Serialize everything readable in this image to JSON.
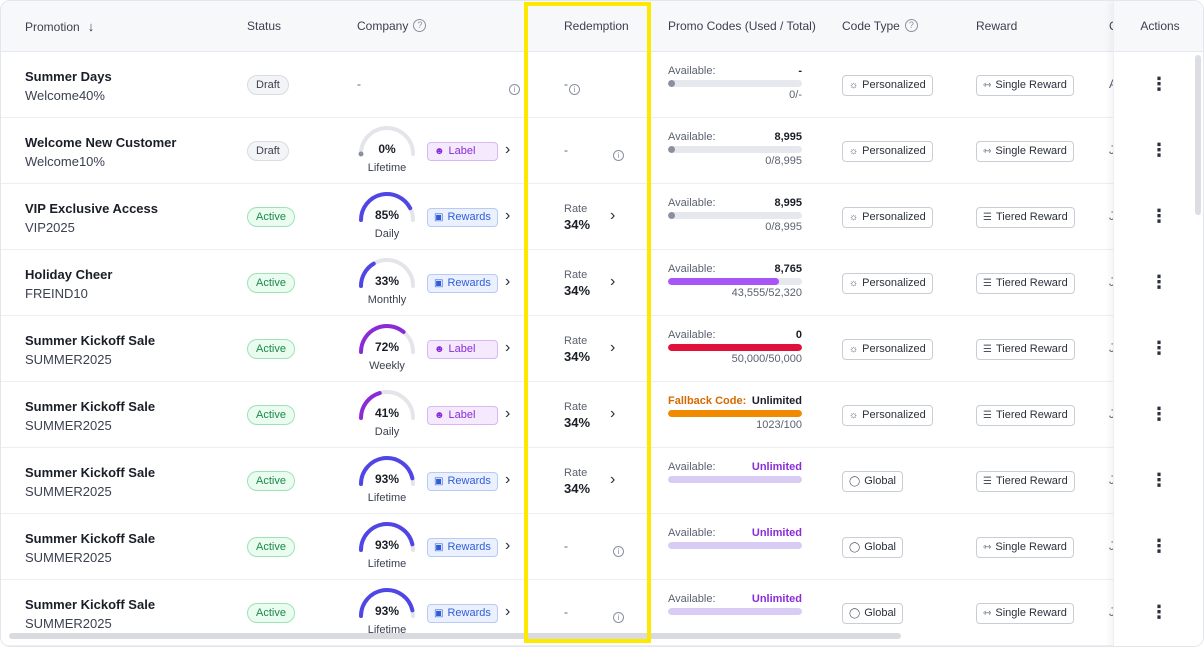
{
  "header": {
    "promotion": "Promotion",
    "status": "Status",
    "company": "Company",
    "redemption": "Redemption",
    "promo_codes": "Promo Codes (Used / Total)",
    "code_type": "Code Type",
    "reward": "Reward",
    "cut_col": "C",
    "actions": "Actions"
  },
  "colors": {
    "highlight": "#fde800",
    "active_green": "#1a8a48",
    "gauge_blue": "#4f46e5",
    "gauge_purple": "#8a2bd8",
    "bar_purple": "#a855f7",
    "bar_red": "#e0103a",
    "bar_orange": "#f08a00",
    "bar_lavender": "#d8ccf5"
  },
  "rows": [
    {
      "name": "Summer Days",
      "code": "Welcome40%",
      "status": "Draft",
      "company": "-",
      "redemption": "-",
      "promo_label": "Available:",
      "promo_value": "-",
      "promo_ratio": "0/-",
      "promo_fill": 0,
      "code_type": "Personalized",
      "code_icon": "personalized-icon",
      "reward": "Single Reward",
      "reward_icon": "single-reward-icon",
      "cut": "A"
    },
    {
      "name": "Welcome New Customer",
      "code": "Welcome10%",
      "status": "Draft",
      "gauge_pct": "0%",
      "gauge_val": 0,
      "gauge_period": "Lifetime",
      "tag": "Label",
      "tag_kind": "label",
      "redemption": "-",
      "promo_label": "Available:",
      "promo_value": "8,995",
      "promo_ratio": "0/8,995",
      "promo_fill": 0,
      "code_type": "Personalized",
      "code_icon": "personalized-icon",
      "reward": "Single Reward",
      "reward_icon": "single-reward-icon",
      "cut": "J"
    },
    {
      "name": "VIP Exclusive Access",
      "code": "VIP2025",
      "status": "Active",
      "gauge_pct": "85%",
      "gauge_val": 85,
      "gauge_period": "Daily",
      "tag": "Rewards",
      "tag_kind": "rewards",
      "redemption_label": "Rate",
      "redemption_value": "34%",
      "promo_label": "Available:",
      "promo_value": "8,995",
      "promo_ratio": "0/8,995",
      "promo_fill": 0,
      "code_type": "Personalized",
      "code_icon": "personalized-icon",
      "reward": "Tiered Reward",
      "reward_icon": "tiered-reward-icon",
      "cut": "J"
    },
    {
      "name": "Holiday Cheer",
      "code": "FREIND10",
      "status": "Active",
      "gauge_pct": "33%",
      "gauge_val": 33,
      "gauge_period": "Monthly",
      "tag": "Rewards",
      "tag_kind": "rewards",
      "redemption_label": "Rate",
      "redemption_value": "34%",
      "promo_label": "Available:",
      "promo_value": "8,765",
      "promo_ratio": "43,555/52,320",
      "promo_fill": 0.83,
      "promo_color": "#a855f7",
      "code_type": "Personalized",
      "code_icon": "personalized-icon",
      "reward": "Tiered Reward",
      "reward_icon": "tiered-reward-icon",
      "cut": "J"
    },
    {
      "name": "Summer Kickoff Sale",
      "code": "SUMMER2025",
      "status": "Active",
      "gauge_pct": "72%",
      "gauge_val": 72,
      "gauge_period": "Weekly",
      "gauge_color": "#8a2bd8",
      "tag": "Label",
      "tag_kind": "label",
      "redemption_label": "Rate",
      "redemption_value": "34%",
      "promo_label": "Available:",
      "promo_value": "0",
      "promo_ratio": "50,000/50,000",
      "promo_fill": 1,
      "promo_color": "#e0103a",
      "code_type": "Personalized",
      "code_icon": "personalized-icon",
      "reward": "Tiered Reward",
      "reward_icon": "tiered-reward-icon",
      "cut": "J"
    },
    {
      "name": "Summer Kickoff Sale",
      "code": "SUMMER2025",
      "status": "Active",
      "gauge_pct": "41%",
      "gauge_val": 41,
      "gauge_period": "Daily",
      "gauge_color": "#8a2bd8",
      "tag": "Label",
      "tag_kind": "label",
      "redemption_label": "Rate",
      "redemption_value": "34%",
      "promo_label": "Fallback Code:",
      "promo_label_color": "#d46a00",
      "promo_value": "Unlimited",
      "promo_ratio": "1023/100",
      "promo_fill": 1,
      "promo_color": "#f08a00",
      "code_type": "Personalized",
      "code_icon": "personalized-icon",
      "reward": "Tiered Reward",
      "reward_icon": "tiered-reward-icon",
      "cut": "J"
    },
    {
      "name": "Summer Kickoff Sale",
      "code": "SUMMER2025",
      "status": "Active",
      "gauge_pct": "93%",
      "gauge_val": 93,
      "gauge_period": "Lifetime",
      "tag": "Rewards",
      "tag_kind": "rewards",
      "redemption_label": "Rate",
      "redemption_value": "34%",
      "promo_label": "Available:",
      "promo_value": "Unlimited",
      "promo_value_color": "#8a2bd8",
      "promo_ratio": "",
      "promo_fill": 1,
      "promo_color": "#d8ccf5",
      "code_type": "Global",
      "code_icon": "tag-icon",
      "reward": "Tiered Reward",
      "reward_icon": "tiered-reward-icon",
      "cut": "J"
    },
    {
      "name": "Summer Kickoff Sale",
      "code": "SUMMER2025",
      "status": "Active",
      "gauge_pct": "93%",
      "gauge_val": 93,
      "gauge_period": "Lifetime",
      "tag": "Rewards",
      "tag_kind": "rewards",
      "redemption": "-",
      "promo_label": "Available:",
      "promo_value": "Unlimited",
      "promo_value_color": "#8a2bd8",
      "promo_ratio": "",
      "promo_fill": 1,
      "promo_color": "#d8ccf5",
      "code_type": "Global",
      "code_icon": "tag-icon",
      "reward": "Single Reward",
      "reward_icon": "single-reward-icon",
      "cut": "J"
    },
    {
      "name": "Summer Kickoff Sale",
      "code": "SUMMER2025",
      "status": "Active",
      "gauge_pct": "93%",
      "gauge_val": 93,
      "gauge_period": "Lifetime",
      "tag": "Rewards",
      "tag_kind": "rewards",
      "redemption": "-",
      "promo_label": "Available:",
      "promo_value": "Unlimited",
      "promo_value_color": "#8a2bd8",
      "promo_ratio": "",
      "promo_fill": 1,
      "promo_color": "#d8ccf5",
      "code_type": "Global",
      "code_icon": "tag-icon",
      "reward": "Single Reward",
      "reward_icon": "single-reward-icon",
      "cut": "J"
    }
  ]
}
